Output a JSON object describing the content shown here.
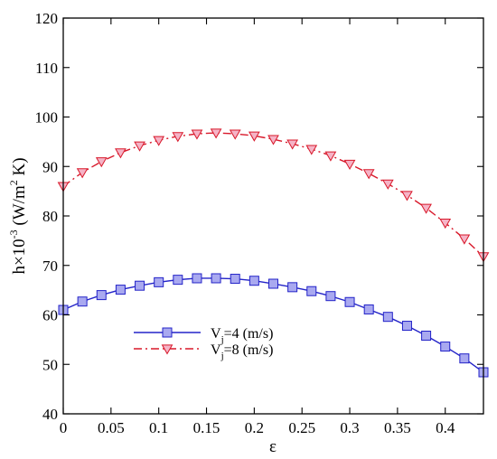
{
  "chart_data": {
    "type": "line",
    "xlabel": "ε",
    "ylabel_base": "h×10",
    "ylabel_exp": "-3",
    "ylabel_unit_open": " (W/m",
    "ylabel_unit_exp": "2",
    "ylabel_unit_close": " K)",
    "xlim": [
      0,
      0.44
    ],
    "ylim": [
      40,
      120
    ],
    "xticks": [
      0,
      0.05,
      0.1,
      0.15,
      0.2,
      0.25,
      0.3,
      0.35,
      0.4
    ],
    "xtick_labels": [
      "0",
      "0.05",
      "0.1",
      "0.15",
      "0.2",
      "0.25",
      "0.3",
      "0.35",
      "0.4"
    ],
    "yticks": [
      40,
      50,
      60,
      70,
      80,
      90,
      100,
      110,
      120
    ],
    "ytick_labels": [
      "40",
      "50",
      "60",
      "70",
      "80",
      "90",
      "100",
      "110",
      "120"
    ],
    "grid": false,
    "legend_position": "center-left",
    "x": [
      0,
      0.02,
      0.04,
      0.06,
      0.08,
      0.1,
      0.12,
      0.14,
      0.16,
      0.18,
      0.2,
      0.22,
      0.24,
      0.26,
      0.28,
      0.3,
      0.32,
      0.34,
      0.36,
      0.38,
      0.4,
      0.42,
      0.44
    ],
    "series": [
      {
        "name_base": "V",
        "name_sub": "j",
        "name_rest": "=4 (m/s)",
        "color": "#2323c8",
        "marker_fill": "#a9a9f0",
        "marker": "square",
        "line_style": "solid",
        "values": [
          61.0,
          62.7,
          64.0,
          65.1,
          65.9,
          66.6,
          67.1,
          67.4,
          67.4,
          67.3,
          66.9,
          66.3,
          65.6,
          64.8,
          63.8,
          62.6,
          61.1,
          59.6,
          57.8,
          55.8,
          53.6,
          51.2,
          48.4
        ]
      },
      {
        "name_base": "V",
        "name_sub": "j",
        "name_rest": "=8 (m/s)",
        "color": "#d8182a",
        "marker_fill": "#f5b3c6",
        "marker": "triangle-down",
        "line_style": "dashdot",
        "values": [
          86.0,
          88.8,
          91.0,
          92.8,
          94.2,
          95.3,
          96.1,
          96.6,
          96.8,
          96.6,
          96.2,
          95.5,
          94.6,
          93.5,
          92.2,
          90.5,
          88.6,
          86.5,
          84.2,
          81.6,
          78.6,
          75.4,
          71.8
        ]
      }
    ]
  }
}
